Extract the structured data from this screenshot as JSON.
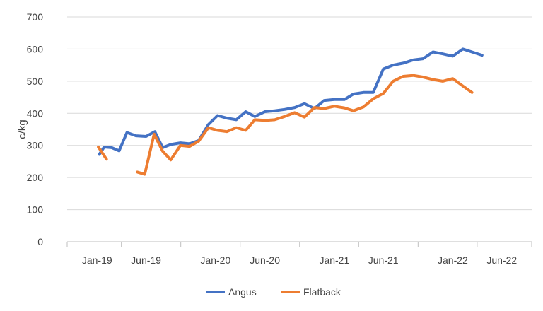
{
  "chart_data": {
    "type": "line",
    "title": "",
    "xlabel": "",
    "ylabel": "c/kg",
    "ylim": [
      0,
      700
    ],
    "yticks": [
      0,
      100,
      200,
      300,
      400,
      500,
      600,
      700
    ],
    "xticks": [
      "Jan-19",
      "Jun-19",
      "Jan-20",
      "Jun-20",
      "Jan-21",
      "Jun-21",
      "Jan-22",
      "Jun-22"
    ],
    "xtick_values": [
      "2019-01-01",
      "2019-06-01",
      "2020-01-01",
      "2020-06-01",
      "2021-01-01",
      "2021-06-01",
      "2022-01-01",
      "2022-06-01"
    ],
    "xlim": [
      "2018-10-01",
      "2022-09-01"
    ],
    "grid": "horizontal",
    "legend": "bottom",
    "series": [
      {
        "name": "Angus",
        "color": "#4472C4",
        "points": [
          [
            "2019-01-08",
            272
          ],
          [
            "2019-01-23",
            295
          ],
          [
            "2019-02-15",
            293
          ],
          [
            "2019-03-10",
            283
          ],
          [
            "2019-04-03",
            340
          ],
          [
            "2019-05-01",
            330
          ],
          [
            "2019-06-01",
            328
          ],
          [
            "2019-06-28",
            343
          ],
          [
            "2019-07-22",
            293
          ],
          [
            "2019-08-16",
            303
          ],
          [
            "2019-09-15",
            308
          ],
          [
            "2019-10-13",
            305
          ],
          [
            "2019-11-10",
            315
          ],
          [
            "2019-12-10",
            365
          ],
          [
            "2020-01-07",
            393
          ],
          [
            "2020-02-05",
            385
          ],
          [
            "2020-03-05",
            380
          ],
          [
            "2020-04-03",
            405
          ],
          [
            "2020-05-01",
            390
          ],
          [
            "2020-06-01",
            405
          ],
          [
            "2020-07-01",
            408
          ],
          [
            "2020-08-01",
            412
          ],
          [
            "2020-09-01",
            418
          ],
          [
            "2020-10-01",
            430
          ],
          [
            "2020-11-01",
            415
          ],
          [
            "2020-12-01",
            440
          ],
          [
            "2021-01-01",
            443
          ],
          [
            "2021-02-01",
            443
          ],
          [
            "2021-03-01",
            460
          ],
          [
            "2021-04-01",
            465
          ],
          [
            "2021-05-01",
            465
          ],
          [
            "2021-06-01",
            538
          ],
          [
            "2021-07-01",
            550
          ],
          [
            "2021-08-01",
            556
          ],
          [
            "2021-09-01",
            566
          ],
          [
            "2021-10-01",
            570
          ],
          [
            "2021-11-01",
            591
          ],
          [
            "2021-12-01",
            585
          ],
          [
            "2022-01-01",
            578
          ],
          [
            "2022-02-01",
            600
          ],
          [
            "2022-03-01",
            591
          ],
          [
            "2022-04-01",
            581
          ]
        ]
      },
      {
        "name": "Flatback",
        "color": "#ED7D31",
        "segments": [
          [
            [
              "2019-01-05",
              295
            ],
            [
              "2019-01-30",
              257
            ]
          ],
          [
            [
              "2019-05-05",
              217
            ],
            [
              "2019-05-28",
              210
            ],
            [
              "2019-06-26",
              335
            ],
            [
              "2019-07-22",
              282
            ],
            [
              "2019-08-16",
              255
            ],
            [
              "2019-09-15",
              300
            ],
            [
              "2019-10-13",
              297
            ],
            [
              "2019-11-10",
              313
            ],
            [
              "2019-12-10",
              355
            ],
            [
              "2020-01-07",
              347
            ],
            [
              "2020-02-05",
              343
            ],
            [
              "2020-03-05",
              355
            ],
            [
              "2020-04-03",
              347
            ],
            [
              "2020-05-01",
              380
            ],
            [
              "2020-06-01",
              378
            ],
            [
              "2020-07-01",
              380
            ],
            [
              "2020-08-01",
              390
            ],
            [
              "2020-09-01",
              402
            ],
            [
              "2020-10-01",
              388
            ],
            [
              "2020-11-01",
              418
            ],
            [
              "2020-12-01",
              415
            ],
            [
              "2021-01-01",
              422
            ],
            [
              "2021-02-01",
              417
            ],
            [
              "2021-03-01",
              408
            ],
            [
              "2021-04-01",
              420
            ],
            [
              "2021-05-01",
              445
            ],
            [
              "2021-06-01",
              462
            ],
            [
              "2021-07-01",
              500
            ],
            [
              "2021-08-01",
              515
            ],
            [
              "2021-09-01",
              518
            ],
            [
              "2021-10-01",
              513
            ],
            [
              "2021-11-01",
              505
            ],
            [
              "2021-12-01",
              500
            ],
            [
              "2022-01-01",
              508
            ],
            [
              "2022-02-01",
              485
            ],
            [
              "2022-03-01",
              465
            ]
          ]
        ]
      }
    ]
  }
}
